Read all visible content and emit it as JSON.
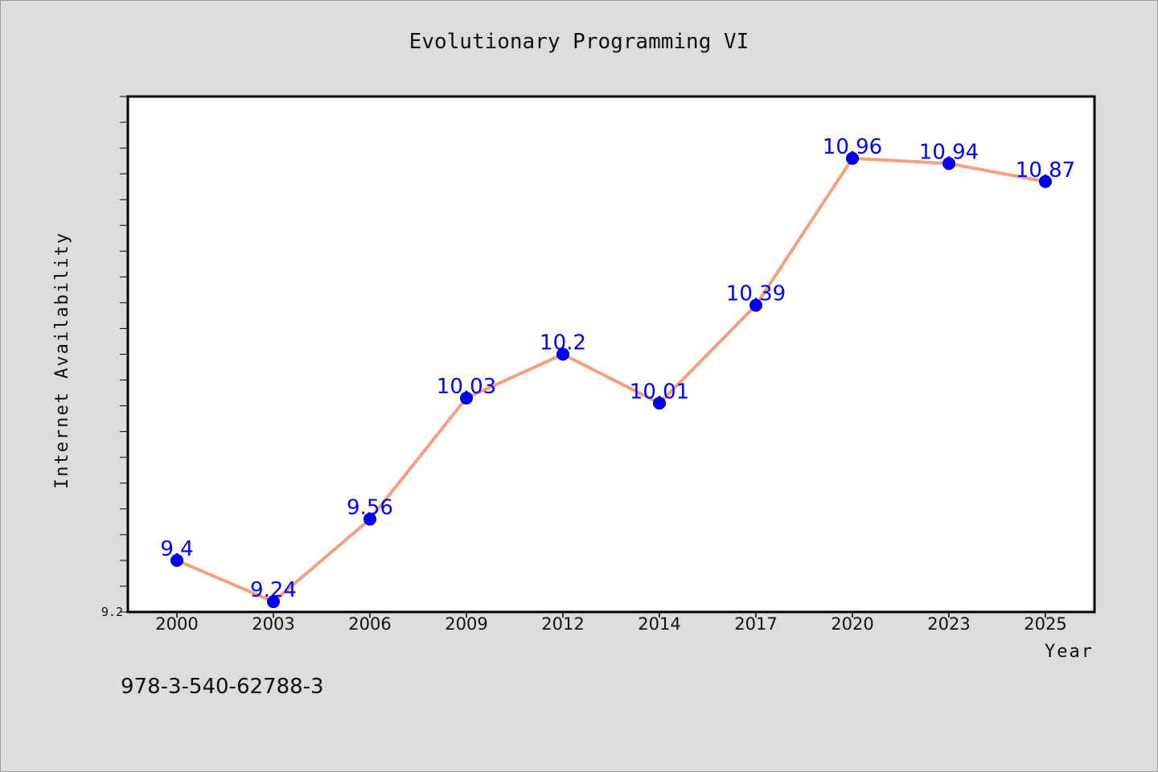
{
  "chart_data": {
    "type": "line",
    "title": "Evolutionary Programming VI",
    "xlabel": "Year",
    "ylabel": "Internet Availability",
    "categories": [
      "2000",
      "2003",
      "2006",
      "2009",
      "2012",
      "2014",
      "2017",
      "2020",
      "2023",
      "2025"
    ],
    "series": [
      {
        "values": [
          9.4,
          9.24,
          9.56,
          10.03,
          10.2,
          10.01,
          10.39,
          10.96,
          10.94,
          10.87
        ]
      }
    ],
    "data_labels": [
      "9.4",
      "9.24",
      "9.56",
      "10.03",
      "10.2",
      "10.01",
      "10.39",
      "10.96",
      "10.94",
      "10.87"
    ],
    "ylim": [
      9.2,
      11.2
    ],
    "yticks_labeled": [
      "9.2"
    ],
    "grid": false,
    "line_color": "#f4a07e",
    "marker_color": "#0000ff",
    "label_color": "#0000ff"
  },
  "footer": {
    "isbn": "978-3-540-62788-3"
  }
}
